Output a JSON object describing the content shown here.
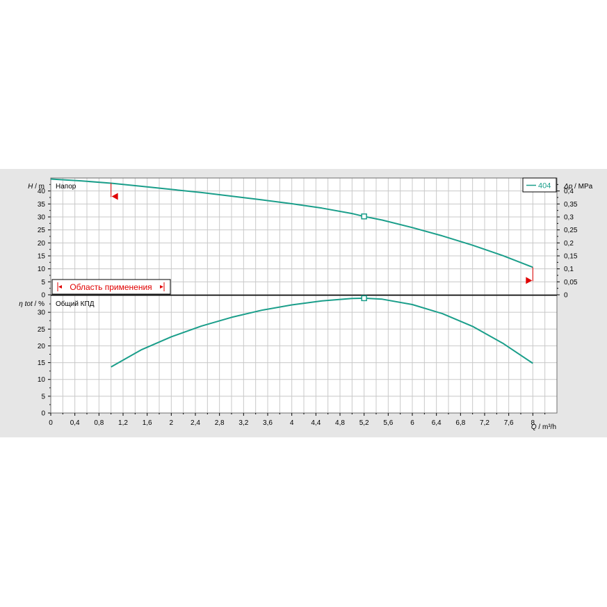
{
  "chart_data": [
    {
      "type": "line",
      "panel_label": "Напор",
      "ylabel_var": "H",
      "ylabel_unit": "m",
      "y2label_var": "Δp",
      "y2label_unit": "MPa",
      "ylim": [
        0,
        45
      ],
      "yticks": [
        0,
        5,
        10,
        15,
        20,
        25,
        30,
        35,
        40
      ],
      "y2lim": [
        0,
        0.45
      ],
      "y2ticks": [
        "0",
        "0,05",
        "0,1",
        "0,15",
        "0,2",
        "0,25",
        "0,3",
        "0,35",
        "0,4"
      ],
      "y2tick_values": [
        0,
        0.05,
        0.1,
        0.15,
        0.2,
        0.25,
        0.3,
        0.35,
        0.4
      ],
      "series": [
        {
          "name": "404",
          "color": "#1a9e8a",
          "x": [
            0,
            0.5,
            1.0,
            1.5,
            2.0,
            2.5,
            3.0,
            3.5,
            4.0,
            4.5,
            5.0,
            5.2,
            5.5,
            6.0,
            6.5,
            7.0,
            7.5,
            8.0
          ],
          "y": [
            44.6,
            43.9,
            43.0,
            41.8,
            40.6,
            39.4,
            38.0,
            36.6,
            35.1,
            33.4,
            31.3,
            30.2,
            28.8,
            25.9,
            22.7,
            19.1,
            15.1,
            10.6
          ]
        }
      ],
      "operating_point": {
        "x": 5.2,
        "y": 30.2
      },
      "range_markers": {
        "min_x": 1.0,
        "max_x": 8.0,
        "color": "#e00000"
      },
      "range_label": "Область применения",
      "legend_position": "top-right"
    },
    {
      "type": "line",
      "panel_label": "Общий КПД",
      "ylabel_var": "η tot",
      "ylabel_unit": "%",
      "ylim": [
        0,
        35
      ],
      "yticks": [
        0,
        5,
        10,
        15,
        20,
        25,
        30
      ],
      "series": [
        {
          "name": "404",
          "color": "#1a9e8a",
          "x": [
            1.0,
            1.5,
            2.0,
            2.5,
            3.0,
            3.5,
            4.0,
            4.5,
            5.0,
            5.2,
            5.5,
            6.0,
            6.5,
            7.0,
            7.5,
            8.0
          ],
          "y": [
            13.7,
            18.8,
            22.7,
            25.9,
            28.5,
            30.6,
            32.2,
            33.4,
            34.1,
            34.2,
            33.9,
            32.3,
            29.6,
            25.8,
            20.8,
            14.8
          ]
        }
      ],
      "operating_point": {
        "x": 5.2,
        "y": 34.2
      }
    }
  ],
  "x_axis": {
    "var": "Q",
    "unit": "m³/h",
    "xlim": [
      0,
      8.4
    ],
    "ticks": [
      "0",
      "0,4",
      "0,8",
      "1,2",
      "1,6",
      "2",
      "2,4",
      "2,8",
      "3,2",
      "3,6",
      "4",
      "4,4",
      "4,8",
      "5,2",
      "5,6",
      "6",
      "6,4",
      "6,8",
      "7,2",
      "7,6",
      "8"
    ],
    "tick_values": [
      0,
      0.4,
      0.8,
      1.2,
      1.6,
      2.0,
      2.4,
      2.8,
      3.2,
      3.6,
      4.0,
      4.4,
      4.8,
      5.2,
      5.6,
      6.0,
      6.4,
      6.8,
      7.2,
      7.6,
      8.0
    ]
  }
}
